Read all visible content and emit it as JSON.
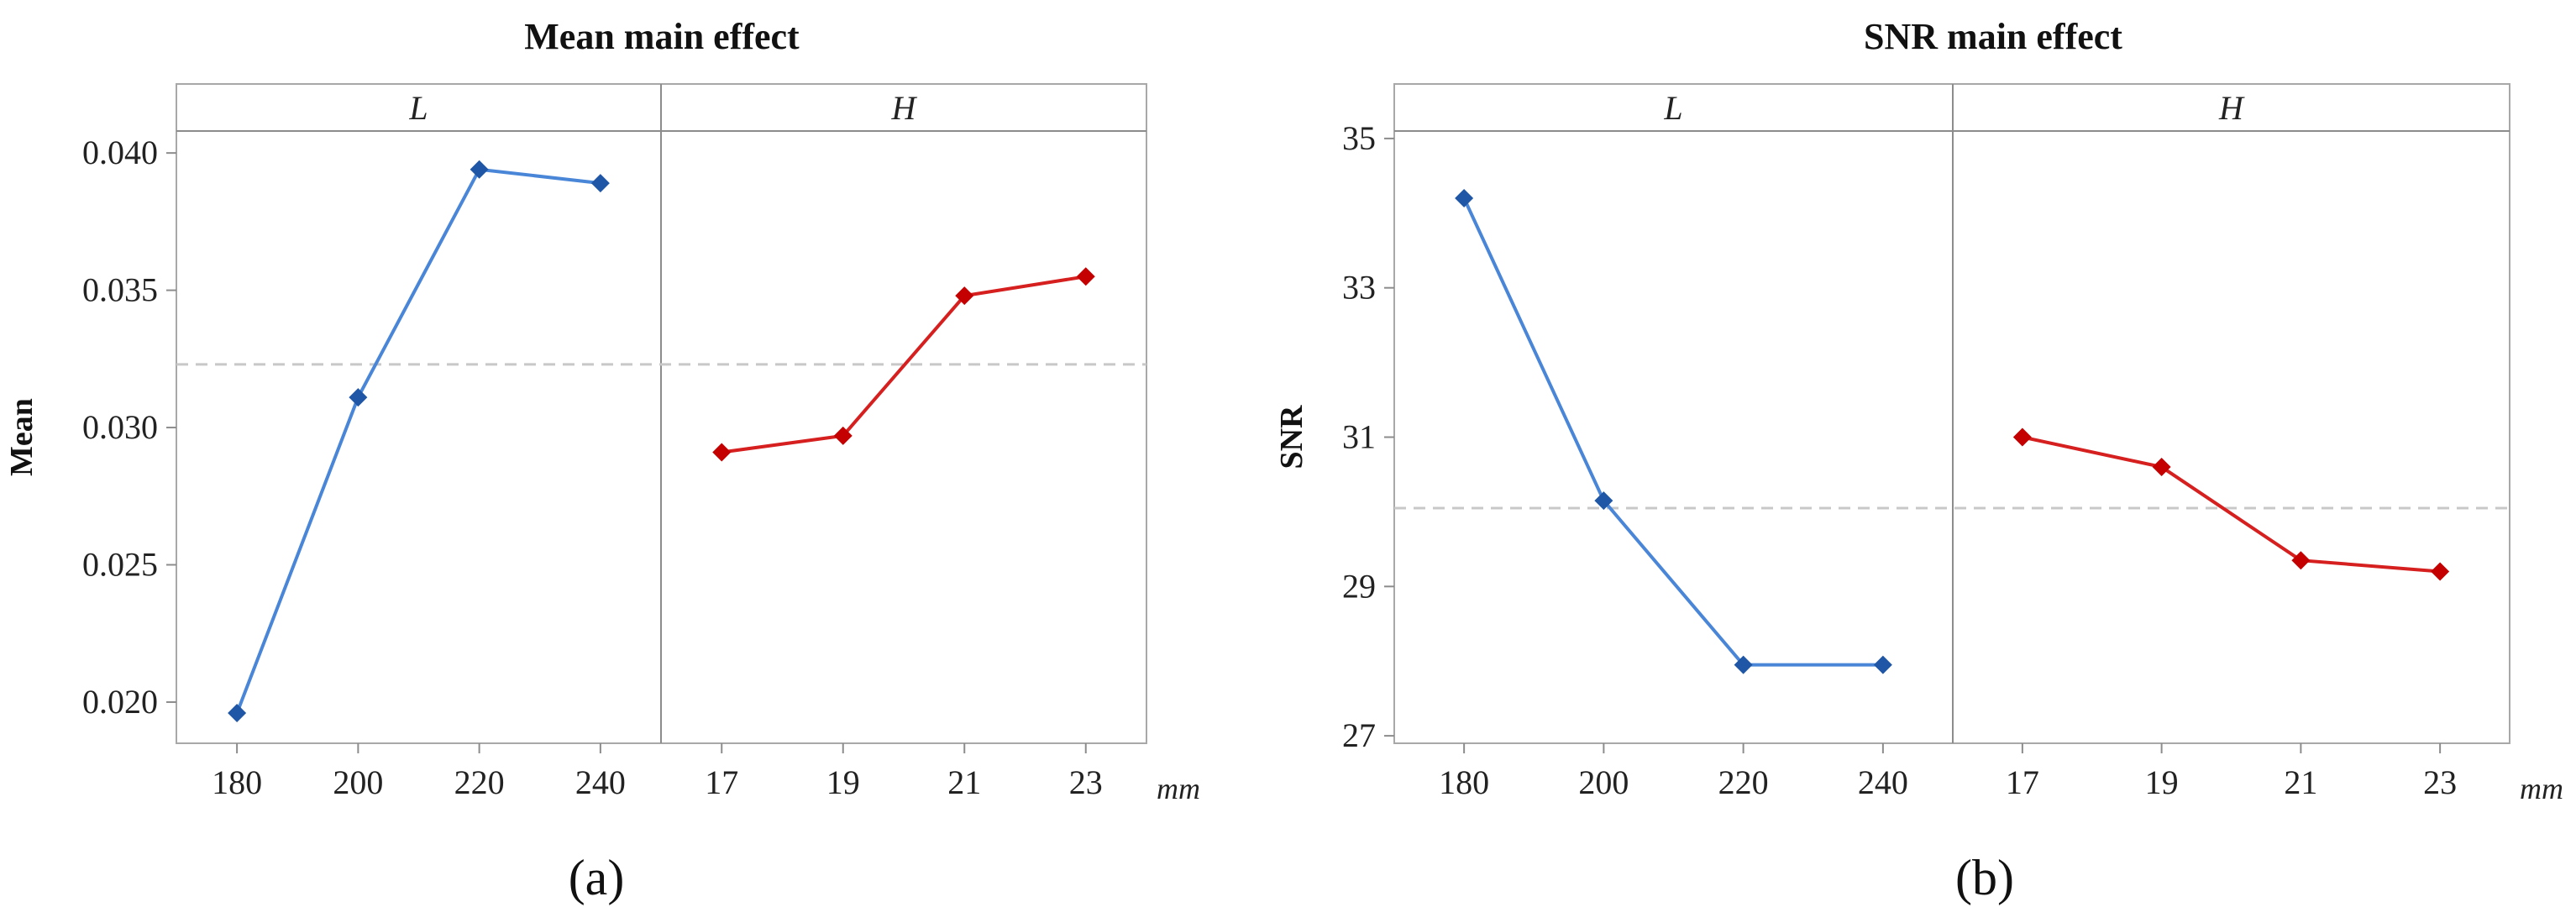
{
  "chart_data": [
    {
      "type": "line",
      "id": "a",
      "title": "Mean main effect",
      "ylabel": "Mean",
      "x_unit": "mm",
      "sublabel": "(a)",
      "ylim": [
        0.0185,
        0.0408
      ],
      "yticks": [
        0.02,
        0.025,
        0.03,
        0.035,
        0.04
      ],
      "ytick_labels": [
        "0.020",
        "0.025",
        "0.030",
        "0.035",
        "0.040"
      ],
      "reference_line": 0.0323,
      "panels": [
        {
          "label": "L",
          "color": "#4a86d8",
          "marker_color": "#1f57a6",
          "x": [
            "180",
            "200",
            "220",
            "240"
          ],
          "values": [
            0.0196,
            0.0311,
            0.0394,
            0.0389
          ]
        },
        {
          "label": "H",
          "color": "#d61f1f",
          "marker_color": "#c40000",
          "x": [
            "17",
            "19",
            "21",
            "23"
          ],
          "values": [
            0.0291,
            0.0297,
            0.0348,
            0.0355
          ]
        }
      ]
    },
    {
      "type": "line",
      "id": "b",
      "title": "SNR main effect",
      "ylabel": "SNR",
      "x_unit": "mm",
      "sublabel": "(b)",
      "ylim": [
        26.9,
        35.1
      ],
      "yticks": [
        27,
        29,
        31,
        33,
        35
      ],
      "ytick_labels": [
        "27",
        "29",
        "31",
        "33",
        "35"
      ],
      "reference_line": 30.05,
      "panels": [
        {
          "label": "L",
          "color": "#4a86d8",
          "marker_color": "#1f57a6",
          "x": [
            "180",
            "200",
            "220",
            "240"
          ],
          "values": [
            34.2,
            30.15,
            27.95,
            27.95
          ]
        },
        {
          "label": "H",
          "color": "#d61f1f",
          "marker_color": "#c40000",
          "x": [
            "17",
            "19",
            "21",
            "23"
          ],
          "values": [
            31.0,
            30.6,
            29.35,
            29.2
          ]
        }
      ]
    }
  ]
}
